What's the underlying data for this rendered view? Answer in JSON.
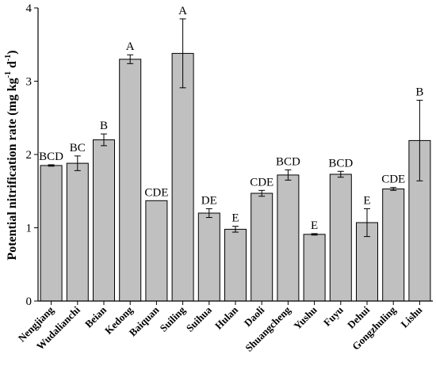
{
  "chart_data": {
    "type": "bar",
    "categories": [
      "Nengjiang",
      "Wudalianchi",
      "Beian",
      "Kedong",
      "Baiquan",
      "Suiling",
      "Suihua",
      "Hulan",
      "Daoli",
      "Shuangcheng",
      "Yushu",
      "Fuyu",
      "Dehui",
      "Gongzhuling",
      "Lishu"
    ],
    "values": [
      1.85,
      1.88,
      2.2,
      3.3,
      1.37,
      3.38,
      1.2,
      0.98,
      1.47,
      1.72,
      0.91,
      1.73,
      1.07,
      1.53,
      2.19
    ],
    "errors": [
      0.01,
      0.1,
      0.08,
      0.06,
      0.0,
      0.47,
      0.06,
      0.04,
      0.04,
      0.07,
      0.01,
      0.04,
      0.19,
      0.02,
      0.55
    ],
    "letters": [
      "BCD",
      "BC",
      "B",
      "A",
      "CDE",
      "A",
      "DE",
      "E",
      "CDE",
      "BCD",
      "E",
      "BCD",
      "E",
      "CDE",
      "B"
    ],
    "ylabel_main": "Potential nitrification rate (mg kg",
    "ylabel_sup1": "-1",
    "ylabel_mid": " d",
    "ylabel_sup2": "-1",
    "ylabel_end": ")",
    "ylim": [
      0,
      4
    ],
    "yticks": [
      0,
      1,
      2,
      3,
      4
    ],
    "bar_color": "#c0c0c0",
    "edge_color": "#000000"
  }
}
